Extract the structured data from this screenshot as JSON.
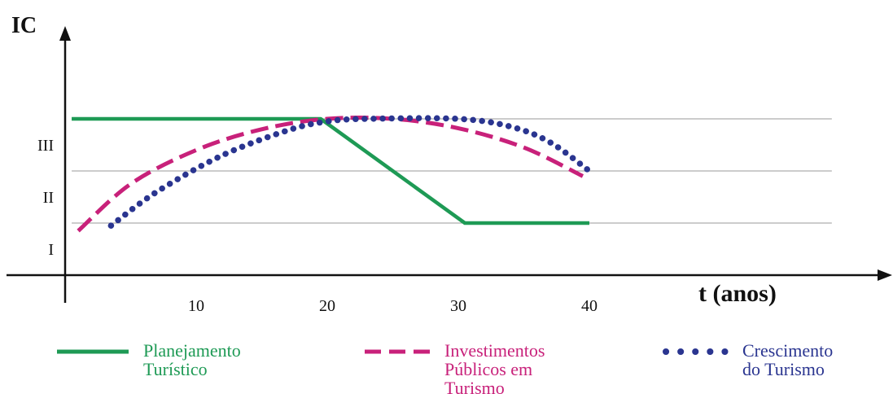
{
  "chart_data": {
    "type": "line",
    "ylabel": "IC",
    "xlabel": "t (anos)",
    "x_ticks": [
      10,
      20,
      30,
      40
    ],
    "xlim": [
      0,
      40
    ],
    "y_levels": [
      "I",
      "II",
      "III"
    ],
    "ylim": [
      0,
      3.8
    ],
    "grid_y": [
      1,
      2,
      3
    ],
    "grid_x": false,
    "legend_position": "bottom",
    "series": [
      {
        "name": "Planejamento Turístico",
        "style": "solid",
        "color": "#1e9a55",
        "points": [
          [
            0.5,
            3.0
          ],
          [
            10,
            3.0
          ],
          [
            19.5,
            3.0
          ],
          [
            30.5,
            1.0
          ],
          [
            40,
            1.0
          ]
        ]
      },
      {
        "name": "Investimentos Públicos em Turismo",
        "style": "dashed",
        "color": "#c8217a",
        "points": [
          [
            1.0,
            0.85
          ],
          [
            5,
            1.75
          ],
          [
            10,
            2.4
          ],
          [
            15,
            2.8
          ],
          [
            20,
            3.0
          ],
          [
            25,
            3.0
          ],
          [
            30,
            2.82
          ],
          [
            35,
            2.45
          ],
          [
            39.5,
            1.9
          ]
        ]
      },
      {
        "name": "Crescimento do Turismo",
        "style": "dotted",
        "color": "#2a3590",
        "points": [
          [
            3.5,
            0.95
          ],
          [
            7,
            1.6
          ],
          [
            12,
            2.3
          ],
          [
            17,
            2.78
          ],
          [
            20,
            2.95
          ],
          [
            23,
            3.0
          ],
          [
            30,
            3.0
          ],
          [
            34,
            2.85
          ],
          [
            37,
            2.55
          ],
          [
            40,
            2.0
          ]
        ]
      }
    ]
  },
  "legend": [
    {
      "lines": [
        "Planejamento",
        "Turístico"
      ]
    },
    {
      "lines": [
        "Investimentos",
        "Públicos em",
        "Turismo"
      ]
    },
    {
      "lines": [
        "Crescimento",
        "do Turismo"
      ]
    }
  ]
}
